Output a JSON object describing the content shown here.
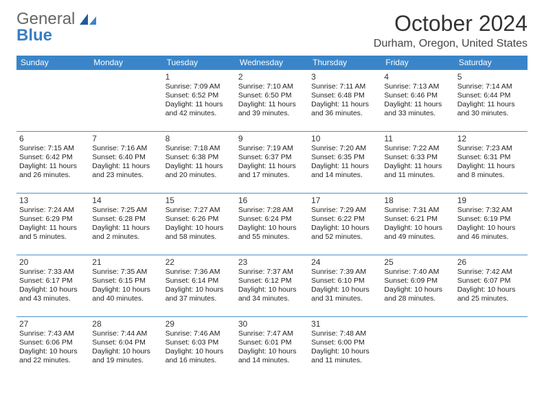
{
  "brand": {
    "part1": "General",
    "part2": "Blue",
    "logo_color": "#3a7fc4"
  },
  "header": {
    "month_title": "October 2024",
    "location": "Durham, Oregon, United States"
  },
  "colors": {
    "headerbar_bg": "#3a85c9",
    "headerbar_fg": "#ffffff",
    "daydivider": "#4a8fc9",
    "text": "#222222",
    "page_bg": "#ffffff"
  },
  "typography": {
    "title_fontsize": 32,
    "location_fontsize": 16,
    "dayhead_fontsize": 12,
    "body_fontsize": 10.5
  },
  "calendar": {
    "day_headers": [
      "Sunday",
      "Monday",
      "Tuesday",
      "Wednesday",
      "Thursday",
      "Friday",
      "Saturday"
    ],
    "weeks": [
      [
        null,
        null,
        {
          "n": "1",
          "sunrise": "Sunrise: 7:09 AM",
          "sunset": "Sunset: 6:52 PM",
          "daylight": "Daylight: 11 hours and 42 minutes."
        },
        {
          "n": "2",
          "sunrise": "Sunrise: 7:10 AM",
          "sunset": "Sunset: 6:50 PM",
          "daylight": "Daylight: 11 hours and 39 minutes."
        },
        {
          "n": "3",
          "sunrise": "Sunrise: 7:11 AM",
          "sunset": "Sunset: 6:48 PM",
          "daylight": "Daylight: 11 hours and 36 minutes."
        },
        {
          "n": "4",
          "sunrise": "Sunrise: 7:13 AM",
          "sunset": "Sunset: 6:46 PM",
          "daylight": "Daylight: 11 hours and 33 minutes."
        },
        {
          "n": "5",
          "sunrise": "Sunrise: 7:14 AM",
          "sunset": "Sunset: 6:44 PM",
          "daylight": "Daylight: 11 hours and 30 minutes."
        }
      ],
      [
        {
          "n": "6",
          "sunrise": "Sunrise: 7:15 AM",
          "sunset": "Sunset: 6:42 PM",
          "daylight": "Daylight: 11 hours and 26 minutes."
        },
        {
          "n": "7",
          "sunrise": "Sunrise: 7:16 AM",
          "sunset": "Sunset: 6:40 PM",
          "daylight": "Daylight: 11 hours and 23 minutes."
        },
        {
          "n": "8",
          "sunrise": "Sunrise: 7:18 AM",
          "sunset": "Sunset: 6:38 PM",
          "daylight": "Daylight: 11 hours and 20 minutes."
        },
        {
          "n": "9",
          "sunrise": "Sunrise: 7:19 AM",
          "sunset": "Sunset: 6:37 PM",
          "daylight": "Daylight: 11 hours and 17 minutes."
        },
        {
          "n": "10",
          "sunrise": "Sunrise: 7:20 AM",
          "sunset": "Sunset: 6:35 PM",
          "daylight": "Daylight: 11 hours and 14 minutes."
        },
        {
          "n": "11",
          "sunrise": "Sunrise: 7:22 AM",
          "sunset": "Sunset: 6:33 PM",
          "daylight": "Daylight: 11 hours and 11 minutes."
        },
        {
          "n": "12",
          "sunrise": "Sunrise: 7:23 AM",
          "sunset": "Sunset: 6:31 PM",
          "daylight": "Daylight: 11 hours and 8 minutes."
        }
      ],
      [
        {
          "n": "13",
          "sunrise": "Sunrise: 7:24 AM",
          "sunset": "Sunset: 6:29 PM",
          "daylight": "Daylight: 11 hours and 5 minutes."
        },
        {
          "n": "14",
          "sunrise": "Sunrise: 7:25 AM",
          "sunset": "Sunset: 6:28 PM",
          "daylight": "Daylight: 11 hours and 2 minutes."
        },
        {
          "n": "15",
          "sunrise": "Sunrise: 7:27 AM",
          "sunset": "Sunset: 6:26 PM",
          "daylight": "Daylight: 10 hours and 58 minutes."
        },
        {
          "n": "16",
          "sunrise": "Sunrise: 7:28 AM",
          "sunset": "Sunset: 6:24 PM",
          "daylight": "Daylight: 10 hours and 55 minutes."
        },
        {
          "n": "17",
          "sunrise": "Sunrise: 7:29 AM",
          "sunset": "Sunset: 6:22 PM",
          "daylight": "Daylight: 10 hours and 52 minutes."
        },
        {
          "n": "18",
          "sunrise": "Sunrise: 7:31 AM",
          "sunset": "Sunset: 6:21 PM",
          "daylight": "Daylight: 10 hours and 49 minutes."
        },
        {
          "n": "19",
          "sunrise": "Sunrise: 7:32 AM",
          "sunset": "Sunset: 6:19 PM",
          "daylight": "Daylight: 10 hours and 46 minutes."
        }
      ],
      [
        {
          "n": "20",
          "sunrise": "Sunrise: 7:33 AM",
          "sunset": "Sunset: 6:17 PM",
          "daylight": "Daylight: 10 hours and 43 minutes."
        },
        {
          "n": "21",
          "sunrise": "Sunrise: 7:35 AM",
          "sunset": "Sunset: 6:15 PM",
          "daylight": "Daylight: 10 hours and 40 minutes."
        },
        {
          "n": "22",
          "sunrise": "Sunrise: 7:36 AM",
          "sunset": "Sunset: 6:14 PM",
          "daylight": "Daylight: 10 hours and 37 minutes."
        },
        {
          "n": "23",
          "sunrise": "Sunrise: 7:37 AM",
          "sunset": "Sunset: 6:12 PM",
          "daylight": "Daylight: 10 hours and 34 minutes."
        },
        {
          "n": "24",
          "sunrise": "Sunrise: 7:39 AM",
          "sunset": "Sunset: 6:10 PM",
          "daylight": "Daylight: 10 hours and 31 minutes."
        },
        {
          "n": "25",
          "sunrise": "Sunrise: 7:40 AM",
          "sunset": "Sunset: 6:09 PM",
          "daylight": "Daylight: 10 hours and 28 minutes."
        },
        {
          "n": "26",
          "sunrise": "Sunrise: 7:42 AM",
          "sunset": "Sunset: 6:07 PM",
          "daylight": "Daylight: 10 hours and 25 minutes."
        }
      ],
      [
        {
          "n": "27",
          "sunrise": "Sunrise: 7:43 AM",
          "sunset": "Sunset: 6:06 PM",
          "daylight": "Daylight: 10 hours and 22 minutes."
        },
        {
          "n": "28",
          "sunrise": "Sunrise: 7:44 AM",
          "sunset": "Sunset: 6:04 PM",
          "daylight": "Daylight: 10 hours and 19 minutes."
        },
        {
          "n": "29",
          "sunrise": "Sunrise: 7:46 AM",
          "sunset": "Sunset: 6:03 PM",
          "daylight": "Daylight: 10 hours and 16 minutes."
        },
        {
          "n": "30",
          "sunrise": "Sunrise: 7:47 AM",
          "sunset": "Sunset: 6:01 PM",
          "daylight": "Daylight: 10 hours and 14 minutes."
        },
        {
          "n": "31",
          "sunrise": "Sunrise: 7:48 AM",
          "sunset": "Sunset: 6:00 PM",
          "daylight": "Daylight: 10 hours and 11 minutes."
        },
        null,
        null
      ]
    ]
  }
}
